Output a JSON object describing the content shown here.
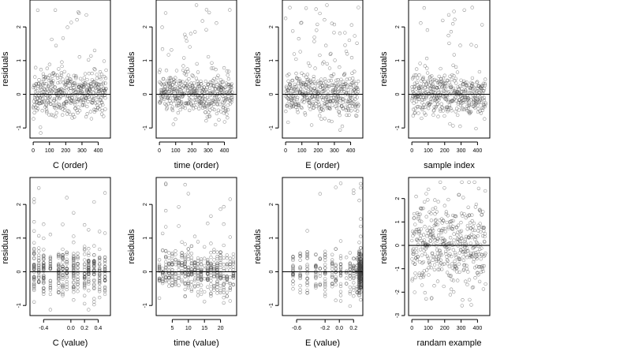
{
  "chart_data": [
    {
      "type": "scatter",
      "id": "c-order",
      "xlabel": "C (order)",
      "ylabel": "residuals",
      "xlim": [
        -20,
        475
      ],
      "ylim": [
        -1.3,
        2.8
      ],
      "x_ticks": [
        0,
        100,
        200,
        300,
        400
      ],
      "y_ticks": [
        -1,
        0,
        1,
        2
      ],
      "x_tick_labels": [
        "0",
        "100",
        "200",
        "300",
        "400"
      ],
      "y_tick_labels": [
        "-1",
        "0",
        "1",
        "2"
      ],
      "reference_line_y": 0,
      "point_style": "open circles",
      "generator": "order",
      "seed": 11
    },
    {
      "type": "scatter",
      "id": "time-order",
      "xlabel": "time (order)",
      "ylabel": "residuals",
      "xlim": [
        -20,
        475
      ],
      "ylim": [
        -1.3,
        2.8
      ],
      "x_ticks": [
        0,
        100,
        200,
        300,
        400
      ],
      "y_ticks": [
        -1,
        0,
        1,
        2
      ],
      "x_tick_labels": [
        "0",
        "100",
        "200",
        "300",
        "400"
      ],
      "y_tick_labels": [
        "-1",
        "0",
        "1",
        "2"
      ],
      "reference_line_y": 0,
      "point_style": "open circles",
      "generator": "order",
      "seed": 23
    },
    {
      "type": "scatter",
      "id": "e-order",
      "xlabel": "E (order)",
      "ylabel": "residuals",
      "xlim": [
        -20,
        475
      ],
      "ylim": [
        -1.3,
        2.8
      ],
      "x_ticks": [
        0,
        100,
        200,
        300,
        400
      ],
      "y_ticks": [
        -1,
        0,
        1,
        2
      ],
      "x_tick_labels": [
        "0",
        "100",
        "200",
        "300",
        "400"
      ],
      "y_tick_labels": [
        "-1",
        "0",
        "1",
        "2"
      ],
      "reference_line_y": 0,
      "point_style": "open circles",
      "generator": "order-rising",
      "seed": 37
    },
    {
      "type": "scatter",
      "id": "sample-index",
      "xlabel": "sample index",
      "ylabel": "residuals",
      "xlim": [
        -20,
        475
      ],
      "ylim": [
        -1.3,
        2.8
      ],
      "x_ticks": [
        0,
        100,
        200,
        300,
        400
      ],
      "y_ticks": [
        -1,
        0,
        1,
        2
      ],
      "x_tick_labels": [
        "0",
        "100",
        "200",
        "300",
        "400"
      ],
      "y_tick_labels": [
        "-1",
        "0",
        "1",
        "2"
      ],
      "reference_line_y": 0,
      "point_style": "open circles",
      "generator": "order-peak",
      "seed": 41
    },
    {
      "type": "scatter",
      "id": "c-value",
      "xlabel": "C (value)",
      "ylabel": "residuals",
      "xlim": [
        -0.6,
        0.58
      ],
      "ylim": [
        -1.3,
        2.8
      ],
      "x_ticks": [
        -0.4,
        -0.0,
        0.2,
        0.4
      ],
      "y_ticks": [
        -1,
        0,
        1,
        2
      ],
      "x_tick_labels": [
        "-0.4",
        "0.0",
        "0.2",
        "0.4"
      ],
      "y_tick_labels": [
        "-1",
        "0",
        "1",
        "2"
      ],
      "columns": [
        -0.54,
        -0.47,
        -0.4,
        -0.3,
        -0.18,
        -0.12,
        -0.06,
        0.04,
        0.1,
        0.2,
        0.26,
        0.34,
        0.42,
        0.5
      ],
      "reference_line_y": 0,
      "point_style": "open circles",
      "generator": "columns",
      "seed": 53
    },
    {
      "type": "scatter",
      "id": "time-value",
      "xlabel": "time (value)",
      "ylabel": "residuals",
      "xlim": [
        0,
        25
      ],
      "ylim": [
        -1.3,
        2.8
      ],
      "x_ticks": [
        5,
        10,
        15,
        20
      ],
      "y_ticks": [
        -1,
        0,
        1,
        2
      ],
      "x_tick_labels": [
        "5",
        "10",
        "15",
        "20"
      ],
      "y_tick_labels": [
        "-1",
        "0",
        "1",
        "2"
      ],
      "columns": [
        1,
        2,
        3,
        4,
        5,
        6,
        7,
        8,
        9,
        10,
        11,
        12,
        13,
        14,
        15,
        16,
        17,
        18,
        19,
        20,
        21,
        22,
        23,
        24
      ],
      "reference_line_y": 0,
      "point_style": "open circles",
      "generator": "columns",
      "seed": 67
    },
    {
      "type": "scatter",
      "id": "e-value",
      "xlabel": "E (value)",
      "ylabel": "residuals",
      "xlim": [
        -0.8,
        0.33
      ],
      "ylim": [
        -1.3,
        2.8
      ],
      "x_ticks": [
        -0.6,
        -0.2,
        0.0,
        0.2
      ],
      "y_ticks": [
        -1,
        0,
        1,
        2
      ],
      "x_tick_labels": [
        "-0.6",
        "-0.2",
        "0.0",
        "0.2"
      ],
      "y_tick_labels": [
        "-1",
        "0",
        "1",
        "2"
      ],
      "columns": [
        -0.65,
        -0.55,
        -0.45,
        -0.33,
        -0.27,
        -0.2,
        -0.1,
        -0.05,
        0.02,
        0.1,
        0.15,
        0.2,
        0.25,
        0.28,
        0.3
      ],
      "reference_line_y": 0,
      "point_style": "open circles",
      "generator": "columns-right",
      "seed": 79
    },
    {
      "type": "scatter",
      "id": "random-example",
      "xlabel": "randam example",
      "ylabel": "residuals",
      "xlim": [
        -20,
        475
      ],
      "ylim": [
        -3,
        2.9
      ],
      "x_ticks": [
        0,
        100,
        200,
        300,
        400
      ],
      "y_ticks": [
        -3,
        -2,
        -1,
        0,
        1,
        2
      ],
      "x_tick_labels": [
        "0",
        "100",
        "200",
        "300",
        "400"
      ],
      "y_tick_labels": [
        "-3",
        "-2",
        "-1",
        "0",
        "1",
        "2"
      ],
      "reference_line_y": 0,
      "point_style": "open circles",
      "generator": "normal",
      "seed": 97
    }
  ]
}
